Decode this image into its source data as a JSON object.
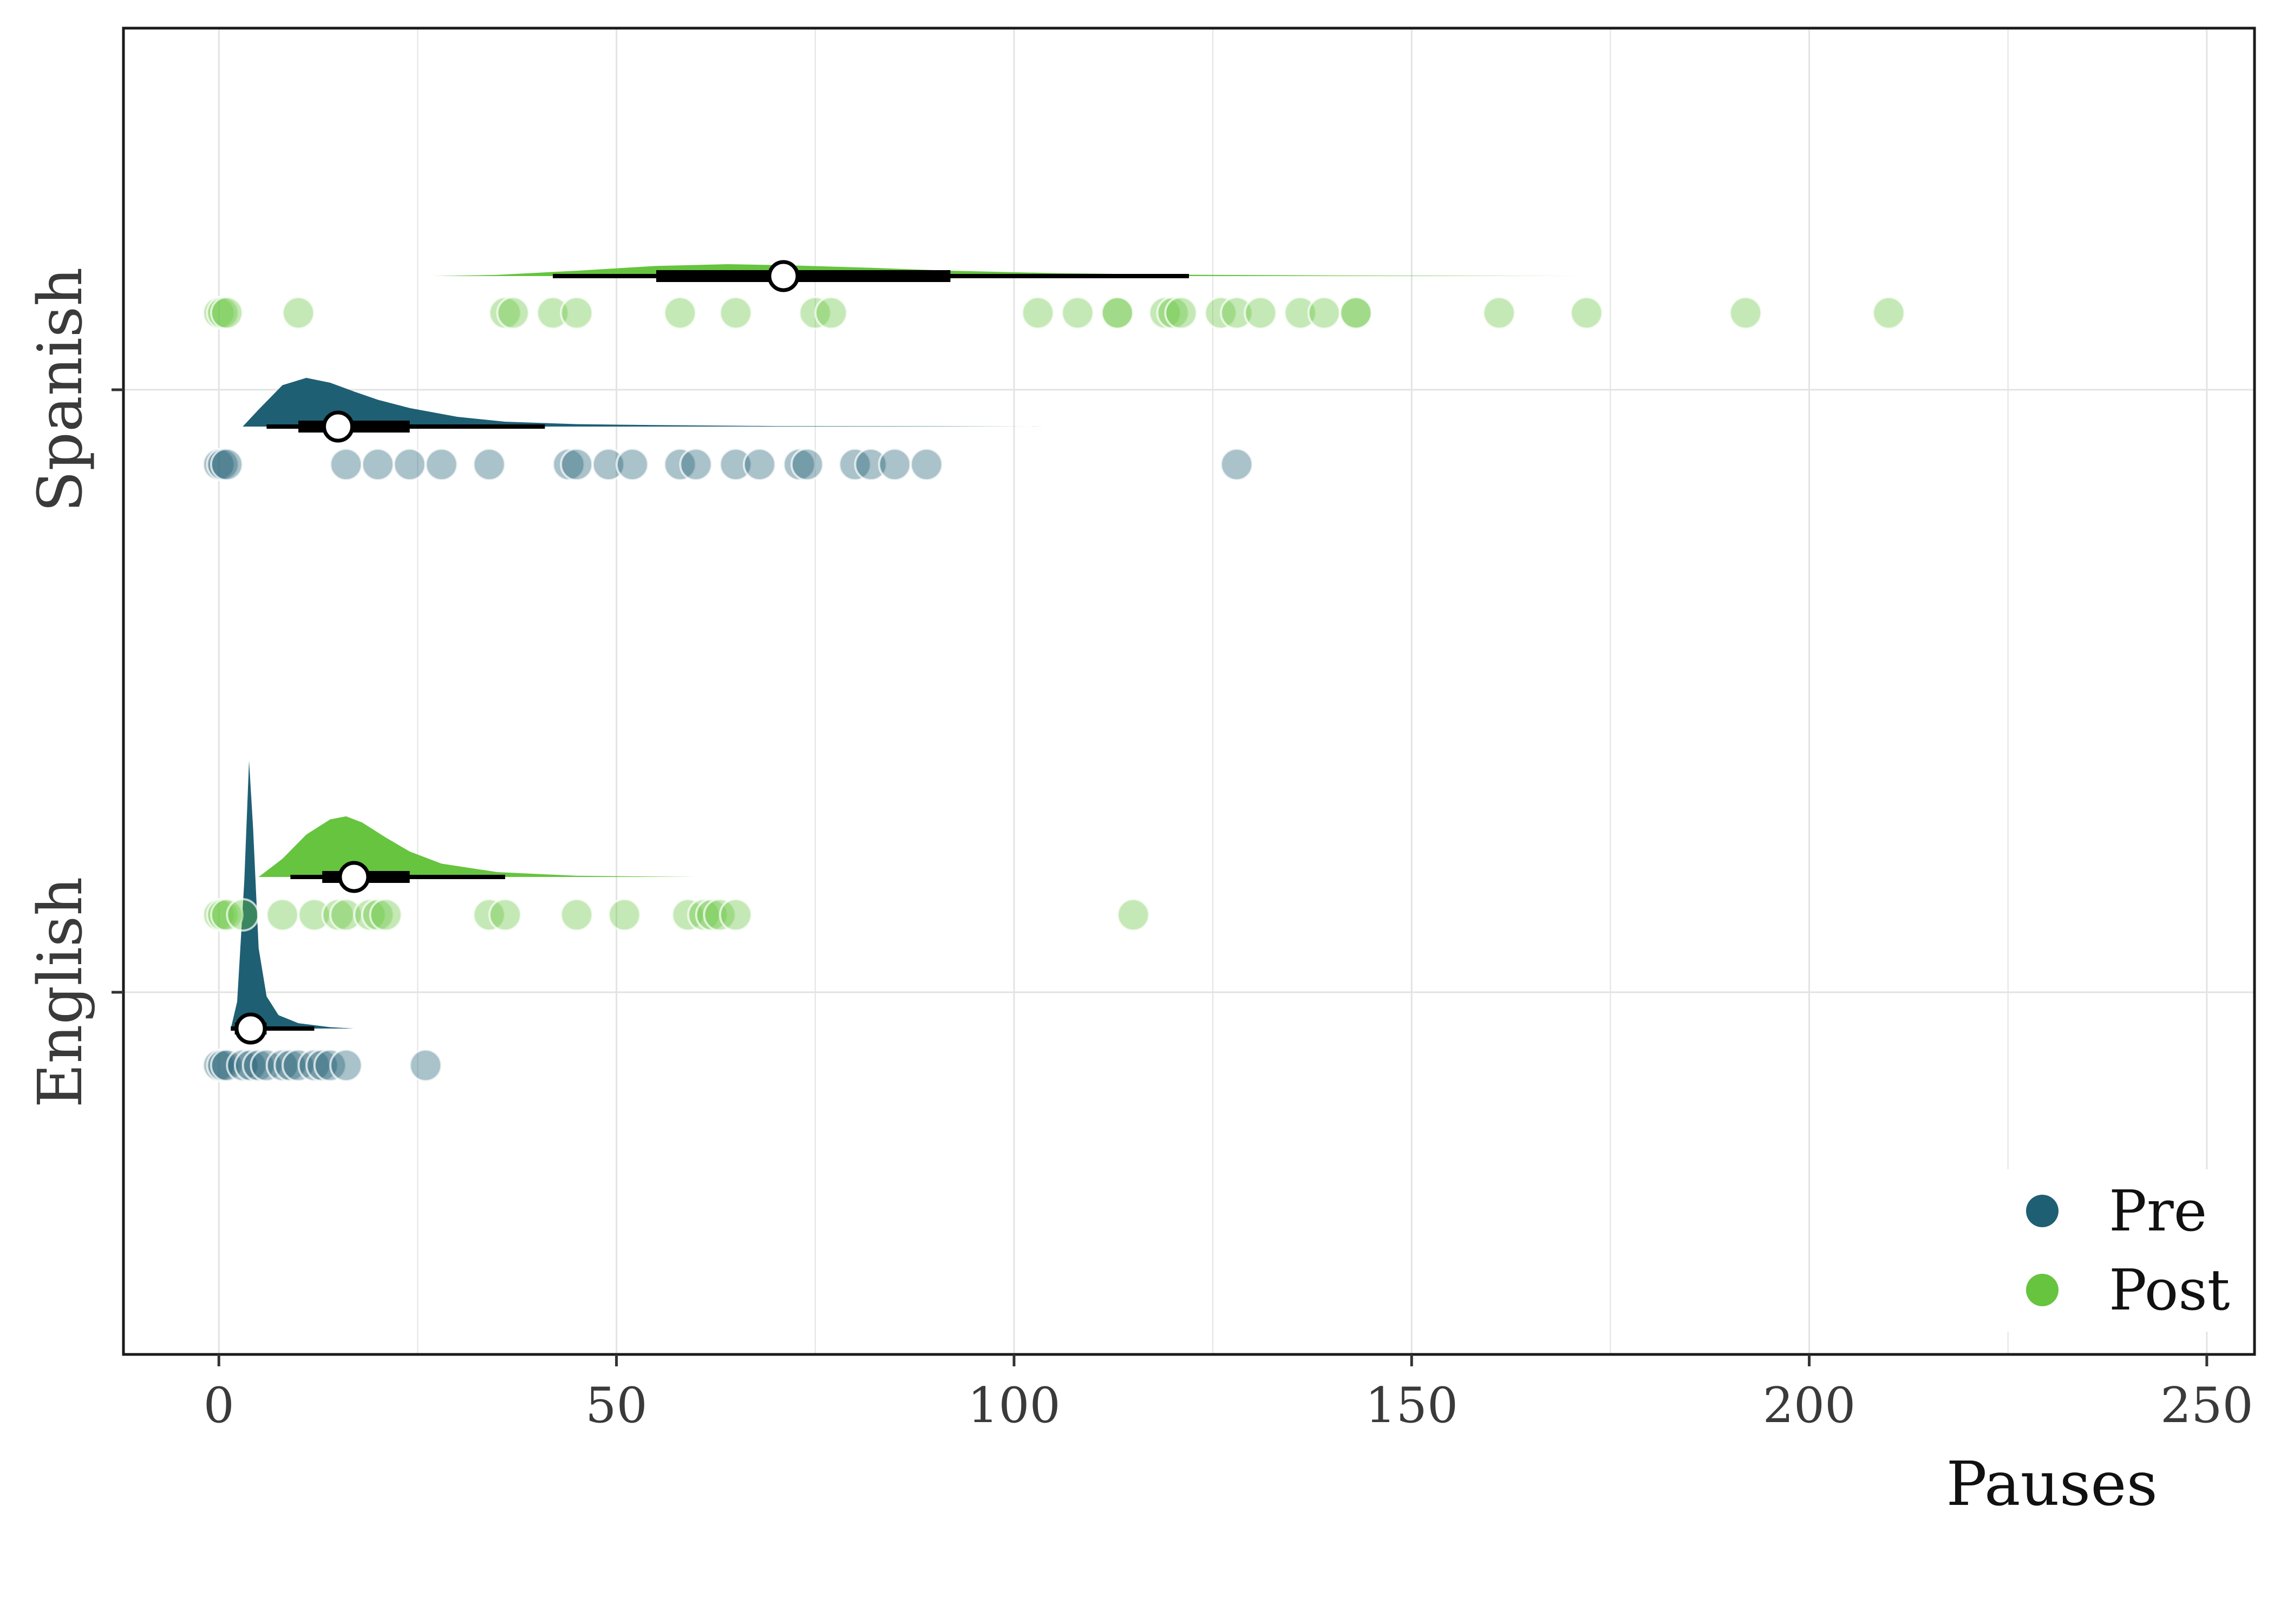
{
  "chart_data": {
    "type": "raincloud",
    "title": "",
    "xlabel": "Pauses",
    "ylabel": "",
    "xlim": [
      -12,
      256
    ],
    "x_ticks": [
      0,
      50,
      100,
      150,
      200,
      250
    ],
    "categories": [
      "Spanish",
      "English"
    ],
    "grid": true,
    "legend_position": "bottom-right",
    "legend": [
      {
        "name": "Pre",
        "color": "#1f5f74"
      },
      {
        "name": "Post",
        "color": "#66c43f"
      }
    ],
    "groups": [
      {
        "category": "Spanish",
        "series": "Pre",
        "color": "#1f5f74",
        "points": [
          0,
          0.5,
          1,
          16,
          20,
          24,
          28,
          34,
          44,
          45,
          49,
          52,
          58,
          60,
          65,
          68,
          73,
          74,
          80,
          82,
          85,
          89,
          128
        ],
        "median": 15,
        "interval_66": [
          10,
          24
        ],
        "interval_95": [
          6,
          41
        ],
        "density": {
          "x": [
            3,
            5,
            8,
            11,
            14,
            17,
            20,
            24,
            30,
            36,
            45,
            55,
            70,
            90,
            104
          ],
          "y": [
            0,
            0.35,
            0.85,
            1.0,
            0.9,
            0.72,
            0.55,
            0.38,
            0.2,
            0.1,
            0.05,
            0.03,
            0.01,
            0.005,
            0
          ]
        }
      },
      {
        "category": "Spanish",
        "series": "Post",
        "color": "#66c43f",
        "points": [
          0,
          0.5,
          1,
          10,
          36,
          37,
          42,
          45,
          58,
          65,
          75,
          77,
          103,
          108,
          113,
          113,
          119,
          120,
          121,
          126,
          128,
          131,
          136,
          139,
          143,
          143,
          161,
          172,
          192,
          210
        ],
        "median": 71,
        "interval_66": [
          55,
          92
        ],
        "interval_95": [
          42,
          122
        ],
        "density": {
          "x": [
            27,
            35,
            45,
            55,
            64,
            72,
            82,
            92,
            105,
            120,
            140,
            160,
            172
          ],
          "y": [
            0,
            0.1,
            0.45,
            0.85,
            1.0,
            0.9,
            0.7,
            0.45,
            0.25,
            0.12,
            0.05,
            0.02,
            0
          ]
        }
      },
      {
        "category": "English",
        "series": "Pre",
        "color": "#1f5f74",
        "points": [
          0,
          0.5,
          1,
          3,
          4,
          5,
          6,
          8,
          9,
          10,
          12,
          13,
          14,
          16,
          26
        ],
        "median": 4,
        "interval_66": [
          2,
          6
        ],
        "interval_95": [
          1.5,
          12
        ],
        "density": {
          "x": [
            1.5,
            2.3,
            3.2,
            3.8,
            4.3,
            5.0,
            6.0,
            7.5,
            10,
            14,
            17
          ],
          "y": [
            0,
            0.1,
            0.55,
            1.0,
            0.75,
            0.3,
            0.12,
            0.05,
            0.02,
            0.005,
            0
          ]
        }
      },
      {
        "category": "English",
        "series": "Post",
        "color": "#66c43f",
        "points": [
          0,
          0.5,
          1,
          3,
          8,
          12,
          15,
          16,
          19,
          20,
          21,
          34,
          36,
          45,
          51,
          59,
          61,
          62,
          63,
          65,
          115
        ],
        "median": 17,
        "interval_66": [
          13,
          24
        ],
        "interval_95": [
          9,
          36
        ],
        "density": {
          "x": [
            5,
            8,
            11,
            14,
            16,
            18,
            21,
            24,
            28,
            35,
            45,
            60
          ],
          "y": [
            0,
            0.3,
            0.7,
            0.95,
            1.0,
            0.9,
            0.65,
            0.42,
            0.22,
            0.08,
            0.02,
            0
          ]
        }
      }
    ]
  }
}
